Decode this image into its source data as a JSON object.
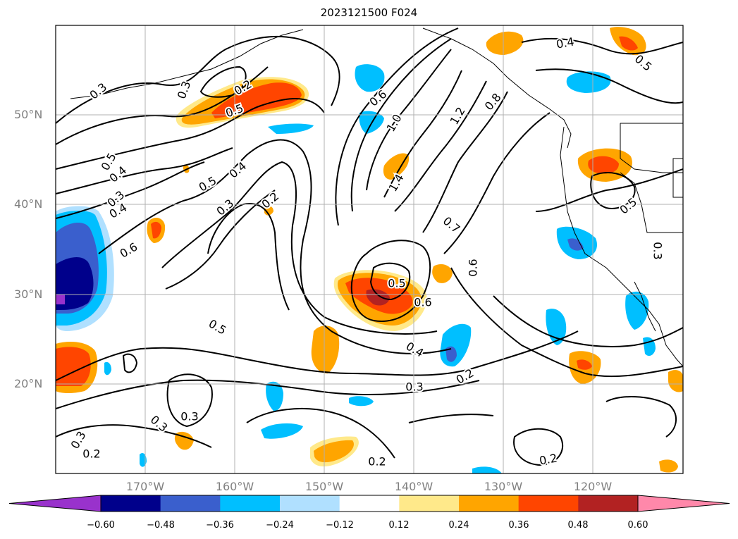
{
  "title": "2023121500 F024",
  "map": {
    "lat_labels": [
      "50°N",
      "40°N",
      "30°N",
      "20°N"
    ],
    "lon_labels": [
      "170°W",
      "160°W",
      "150°W",
      "140°W",
      "130°W",
      "120°W"
    ],
    "contour_labels": [
      "0.3",
      "0.3",
      "0.2",
      "0.5",
      "0.6",
      "1.0",
      "1.2",
      "0.8",
      "0.4",
      "0.5",
      "0.5",
      "0.4",
      "0.3",
      "0.4",
      "0.5",
      "0.4",
      "0.2",
      "0.3",
      "0.6",
      "1.4",
      "0.7",
      "0.5",
      "0.6",
      "0.6",
      "0.3",
      "0.5",
      "0.4",
      "0.3",
      "0.2",
      "0.3",
      "0.3",
      "0.3",
      "0.2",
      "0.2",
      "0.2",
      "0.5"
    ],
    "grid": true
  },
  "colorbar": {
    "ticks": [
      "−0.60",
      "−0.48",
      "−0.36",
      "−0.24",
      "−0.12",
      "0.12",
      "0.24",
      "0.36",
      "0.48",
      "0.60"
    ],
    "colors": [
      "#9932cc",
      "#00008b",
      "#3a5fcd",
      "#00bfff",
      "#b0e0ff",
      "#ffffff",
      "#ffe98a",
      "#ffa500",
      "#ff4500",
      "#b22222",
      "#ff88aa"
    ]
  }
}
